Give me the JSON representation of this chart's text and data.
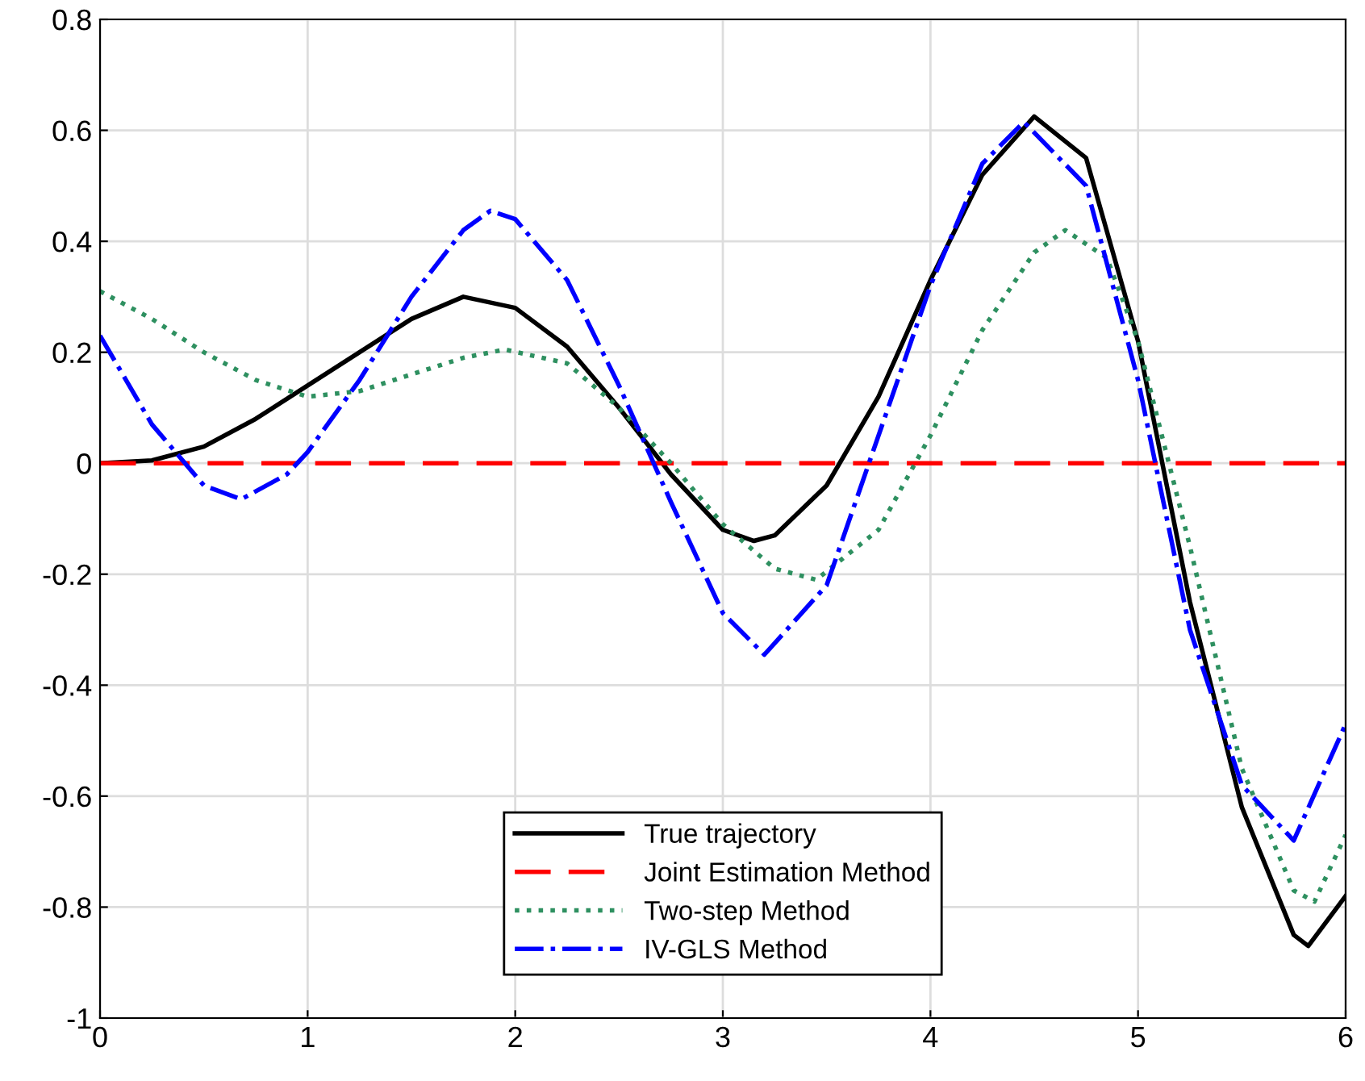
{
  "chart_data": {
    "type": "line",
    "xlim": [
      0,
      6
    ],
    "xticks": [
      0,
      1,
      2,
      3,
      4,
      5,
      6
    ],
    "ylim": [
      -1,
      0.8
    ],
    "yticks": [
      -1,
      -0.8,
      -0.6,
      -0.4,
      -0.2,
      0,
      0.2,
      0.4,
      0.6,
      0.8
    ],
    "grid": true,
    "legend": "bottom",
    "marker": "none",
    "series": [
      {
        "name": "True trajectory",
        "color": "#000000",
        "line_style": "solid",
        "x": [
          0,
          0.25,
          0.5,
          0.75,
          1.0,
          1.25,
          1.5,
          1.75,
          2.0,
          2.25,
          2.5,
          2.75,
          3.0,
          3.15,
          3.25,
          3.5,
          3.75,
          4.0,
          4.25,
          4.5,
          4.75,
          5.0,
          5.25,
          5.5,
          5.75,
          5.82,
          6.0
        ],
        "values": [
          0.0,
          0.005,
          0.03,
          0.08,
          0.14,
          0.2,
          0.26,
          0.3,
          0.28,
          0.21,
          0.1,
          -0.02,
          -0.12,
          -0.14,
          -0.13,
          -0.04,
          0.12,
          0.33,
          0.52,
          0.625,
          0.55,
          0.22,
          -0.25,
          -0.62,
          -0.85,
          -0.87,
          -0.78
        ]
      },
      {
        "name": "Joint Estimation Method",
        "color": "#ff0000",
        "line_style": "dashed",
        "x": [
          0,
          6
        ],
        "values": [
          0,
          0
        ]
      },
      {
        "name": "Two-step Method",
        "color": "#2e9060",
        "line_style": "dotted",
        "x": [
          0,
          0.25,
          0.5,
          0.75,
          1.0,
          1.25,
          1.5,
          1.75,
          1.95,
          2.25,
          2.5,
          2.75,
          3.0,
          3.25,
          3.45,
          3.75,
          4.0,
          4.25,
          4.5,
          4.65,
          4.85,
          5.0,
          5.25,
          5.5,
          5.75,
          5.85,
          6.0
        ],
        "values": [
          0.31,
          0.26,
          0.2,
          0.15,
          0.12,
          0.13,
          0.16,
          0.19,
          0.205,
          0.18,
          0.1,
          0.0,
          -0.11,
          -0.19,
          -0.21,
          -0.12,
          0.05,
          0.24,
          0.38,
          0.42,
          0.37,
          0.22,
          -0.15,
          -0.55,
          -0.77,
          -0.79,
          -0.67
        ]
      },
      {
        "name": "IV-GLS Method",
        "color": "#0000ff",
        "line_style": "dashdot",
        "x": [
          0,
          0.25,
          0.5,
          0.68,
          0.9,
          1.0,
          1.25,
          1.5,
          1.75,
          1.88,
          2.0,
          2.25,
          2.5,
          2.75,
          3.0,
          3.2,
          3.5,
          3.75,
          4.0,
          4.25,
          4.45,
          4.75,
          5.0,
          5.25,
          5.5,
          5.75,
          6.0
        ],
        "values": [
          0.23,
          0.07,
          -0.04,
          -0.065,
          -0.02,
          0.02,
          0.15,
          0.3,
          0.42,
          0.455,
          0.44,
          0.33,
          0.14,
          -0.07,
          -0.27,
          -0.345,
          -0.22,
          0.05,
          0.32,
          0.54,
          0.615,
          0.5,
          0.15,
          -0.3,
          -0.58,
          -0.68,
          -0.47
        ]
      }
    ]
  }
}
